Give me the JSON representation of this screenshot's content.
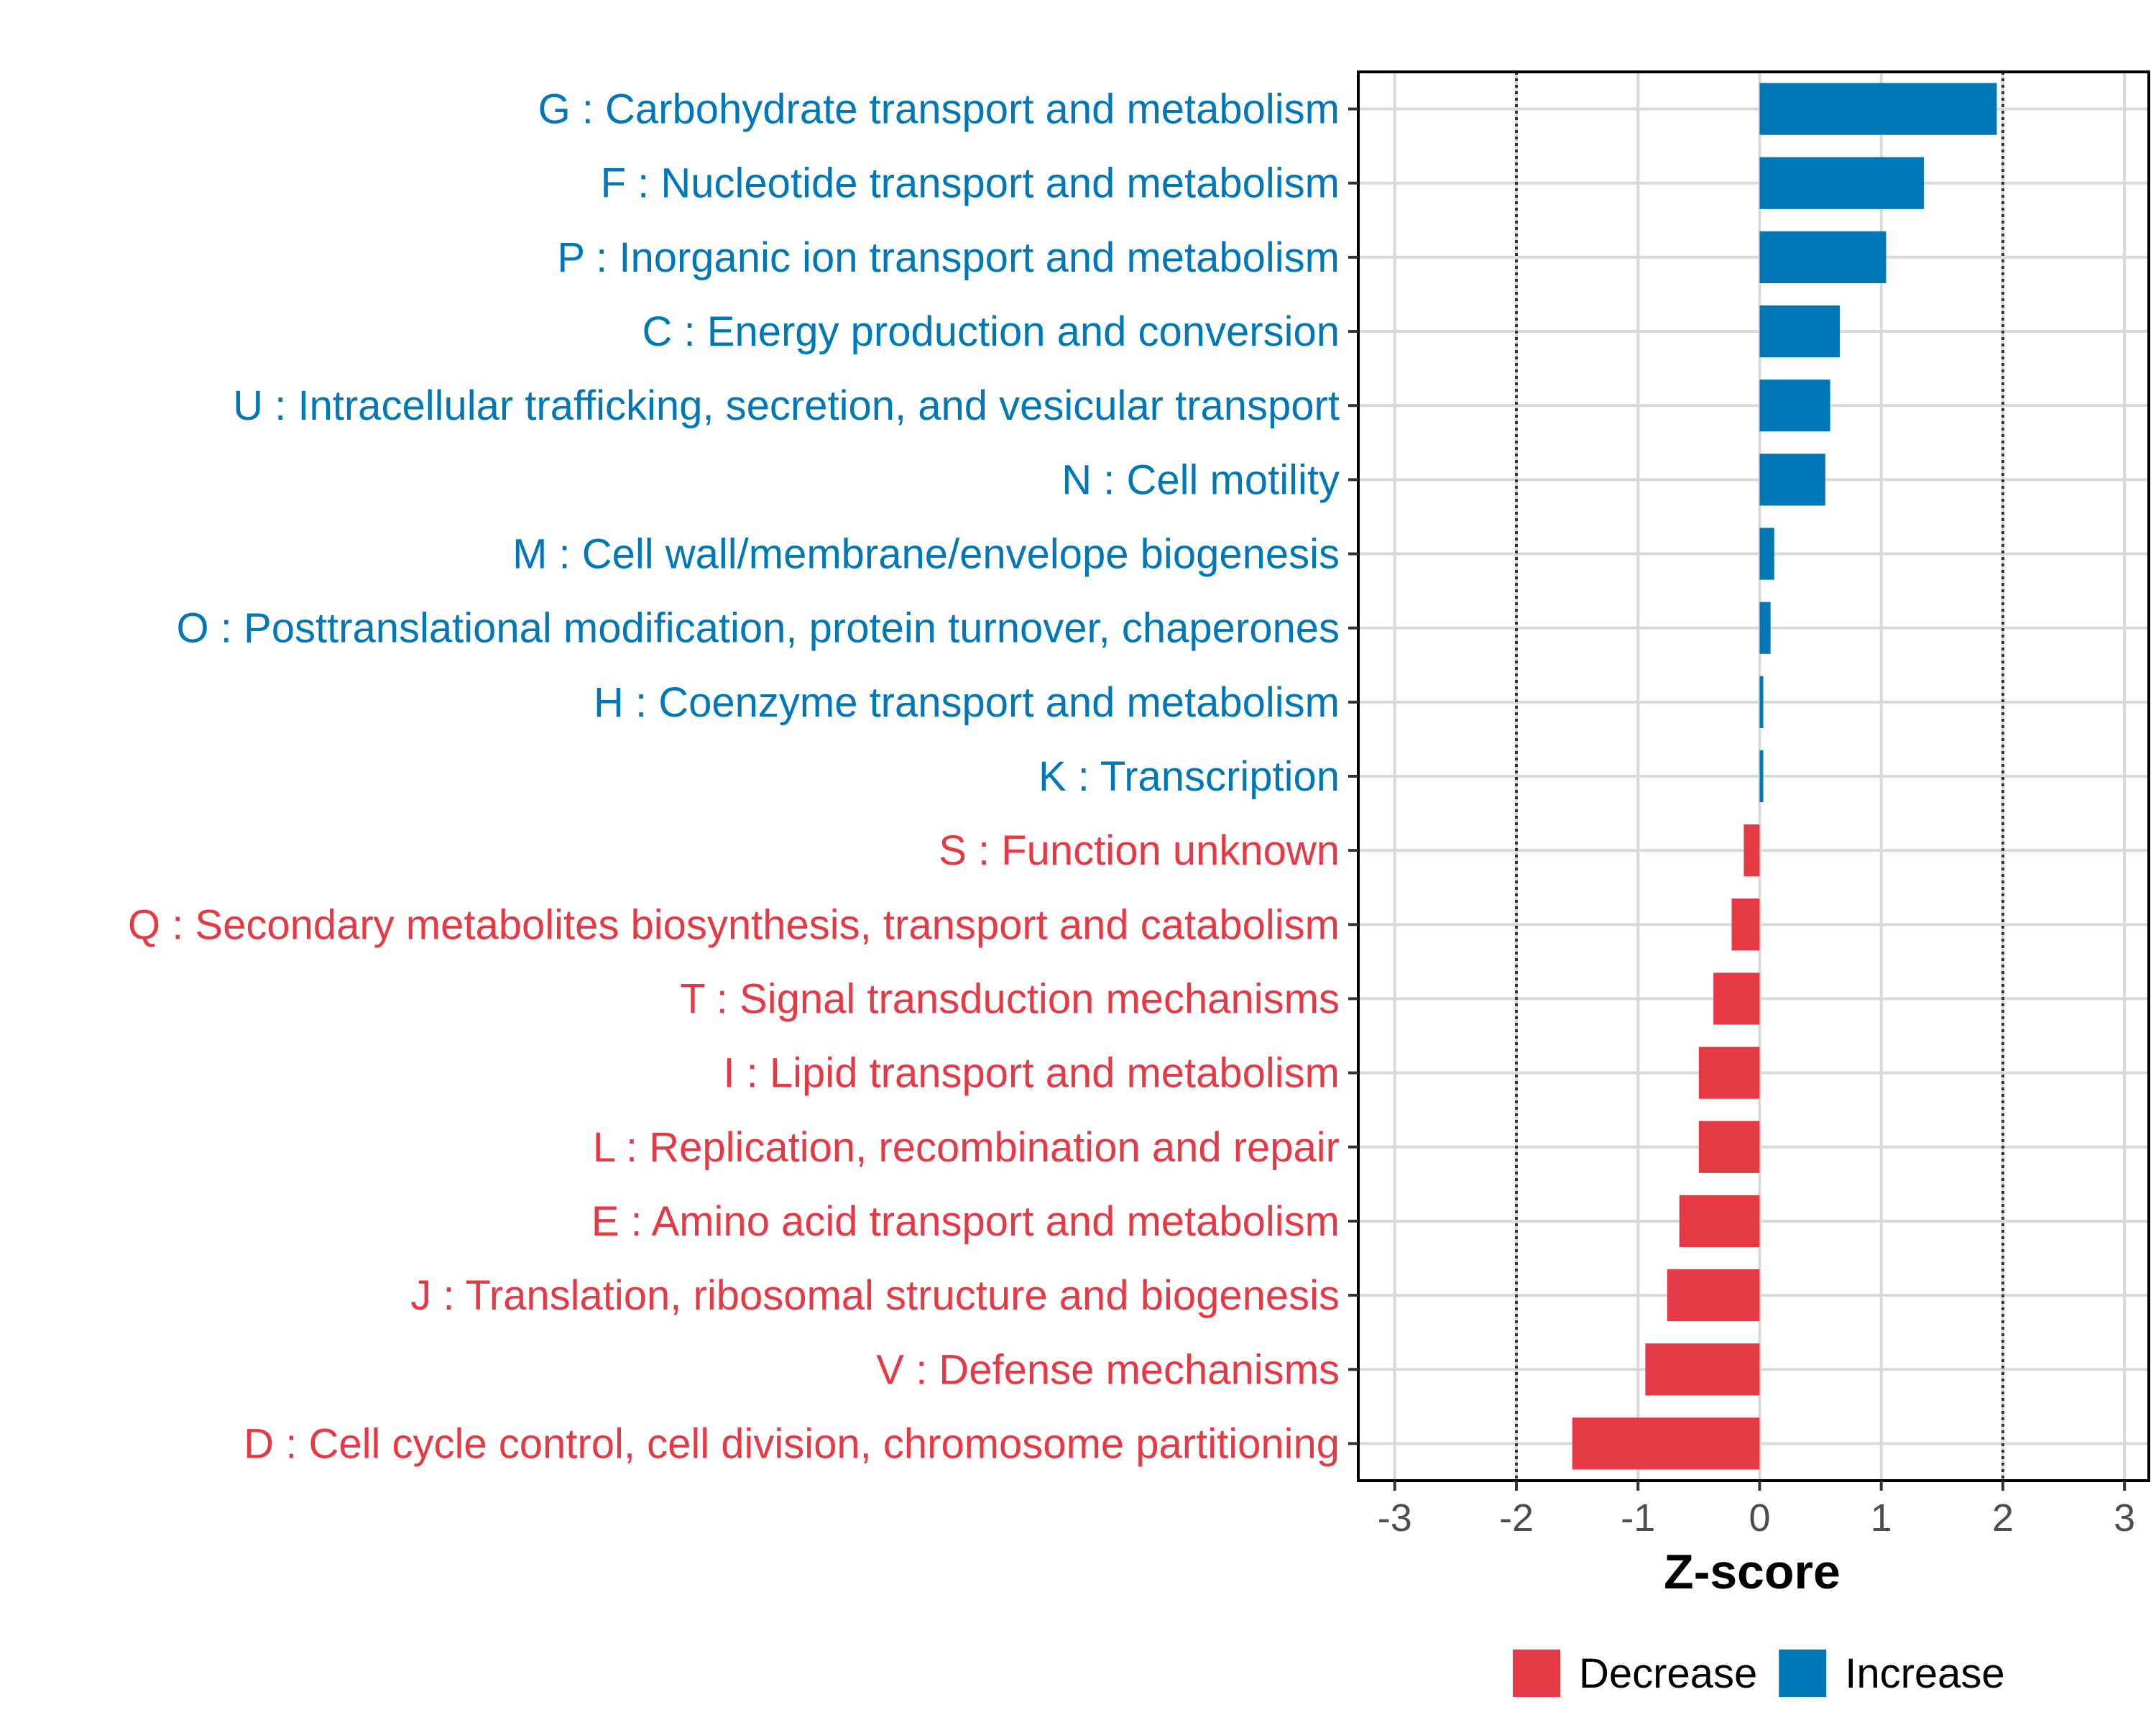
{
  "chart_data": {
    "type": "bar",
    "orientation": "horizontal",
    "title": "",
    "xlabel": "Z-score",
    "ylabel": "",
    "xlim": [
      -3.3,
      3.2
    ],
    "x_ticks": [
      -3,
      -2,
      -1,
      0,
      1,
      2,
      3
    ],
    "x_tick_labels": [
      "-3",
      "-2",
      "-1",
      "0",
      "1",
      "2",
      "3"
    ],
    "threshold_lines": [
      -2,
      2
    ],
    "grid": true,
    "legend_position": "bottom",
    "colors": {
      "Decrease": "#e63946",
      "Increase": "#0077b6"
    },
    "categories": [
      "G : Carbohydrate transport and metabolism",
      "F : Nucleotide transport and metabolism",
      "P : Inorganic ion transport and metabolism",
      "C : Energy production and conversion",
      "U : Intracellular trafficking, secretion, and vesicular transport",
      "N : Cell motility",
      "M : Cell wall/membrane/envelope biogenesis",
      "O : Posttranslational modification, protein turnover, chaperones",
      "H : Coenzyme transport and metabolism",
      "K : Transcription",
      "S : Function unknown",
      "Q : Secondary metabolites biosynthesis, transport and catabolism",
      "T : Signal transduction mechanisms",
      "I : Lipid transport and metabolism",
      "L : Replication, recombination and repair",
      "E : Amino acid transport and metabolism",
      "J : Translation, ribosomal structure and biogenesis",
      "V : Defense mechanisms",
      "D : Cell cycle control, cell division, chromosome partitioning"
    ],
    "values": [
      1.95,
      1.35,
      1.04,
      0.66,
      0.58,
      0.54,
      0.12,
      0.09,
      0.03,
      0.03,
      -0.13,
      -0.23,
      -0.38,
      -0.5,
      -0.5,
      -0.66,
      -0.76,
      -0.94,
      -1.54
    ],
    "groups": [
      "Increase",
      "Increase",
      "Increase",
      "Increase",
      "Increase",
      "Increase",
      "Increase",
      "Increase",
      "Increase",
      "Increase",
      "Decrease",
      "Decrease",
      "Decrease",
      "Decrease",
      "Decrease",
      "Decrease",
      "Decrease",
      "Decrease",
      "Decrease"
    ],
    "legend": [
      {
        "name": "Decrease",
        "color": "#e63946"
      },
      {
        "name": "Increase",
        "color": "#0077b6"
      }
    ]
  }
}
